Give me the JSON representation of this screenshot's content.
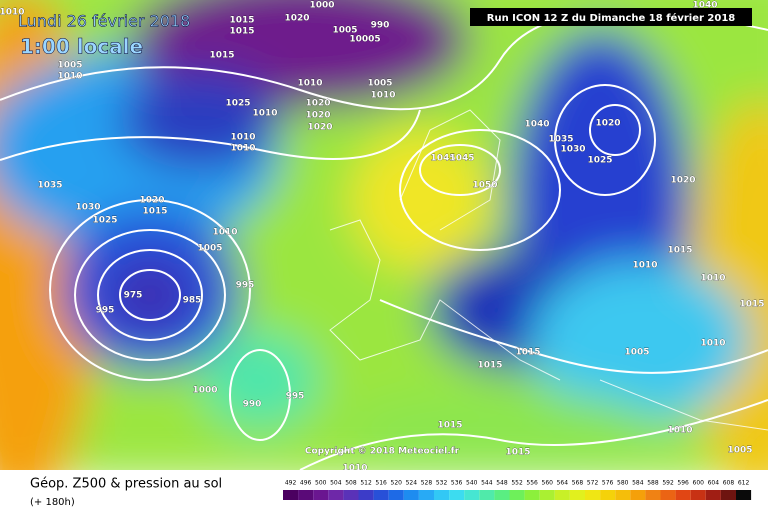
{
  "header": {
    "date": "Lundi 26 février 2018",
    "time": "1:00 locale",
    "run": "Run ICON 12 Z du Dimanche 18 février 2018"
  },
  "isobar_labels": [
    "1010",
    "1015",
    "1015",
    "1020",
    "1000",
    "990",
    "1005",
    "10005",
    "1005",
    "1010",
    "1015",
    "1010",
    "1005",
    "1010",
    "1025",
    "1010",
    "1020",
    "1020",
    "1020",
    "1010",
    "1010",
    "1035",
    "1030",
    "1025",
    "1020",
    "1015",
    "1010",
    "1005",
    "995",
    "975",
    "985",
    "995",
    "1000",
    "990",
    "995",
    "1045",
    "1045",
    "1050",
    "1040",
    "1035",
    "1030",
    "1025",
    "1020",
    "1020",
    "1015",
    "1010",
    "1010",
    "1015",
    "1005",
    "1010",
    "1015",
    "1015",
    "1015",
    "1015",
    "1010",
    "1010",
    "1005",
    "1040"
  ],
  "copyright": "Copyright © 2018 Meteociel.fr",
  "footer": {
    "title": "Géop. Z500 & pression au sol",
    "lead": "(+ 180h)"
  },
  "scale": {
    "values": [
      492,
      496,
      500,
      504,
      508,
      512,
      516,
      520,
      524,
      528,
      532,
      536,
      540,
      544,
      548,
      552,
      556,
      560,
      564,
      568,
      572,
      576,
      580,
      584,
      588,
      592,
      596,
      600,
      604,
      608,
      612
    ],
    "colors": [
      "#4b0060",
      "#5a0a78",
      "#6a1690",
      "#6e28a8",
      "#5a32b8",
      "#3c3cc8",
      "#2850d8",
      "#1e6ae6",
      "#1e8cf0",
      "#28aaf5",
      "#32c8f5",
      "#3cdcf0",
      "#46e6d2",
      "#50eaaa",
      "#5aee82",
      "#6ef05a",
      "#8cf03c",
      "#aaf032",
      "#c8f028",
      "#e1f01e",
      "#f0e614",
      "#f5d20a",
      "#f5be0a",
      "#f5a00a",
      "#f08214",
      "#eb6414",
      "#e14614",
      "#c83214",
      "#a01e14",
      "#6e1410",
      "#0a0a0a"
    ]
  }
}
